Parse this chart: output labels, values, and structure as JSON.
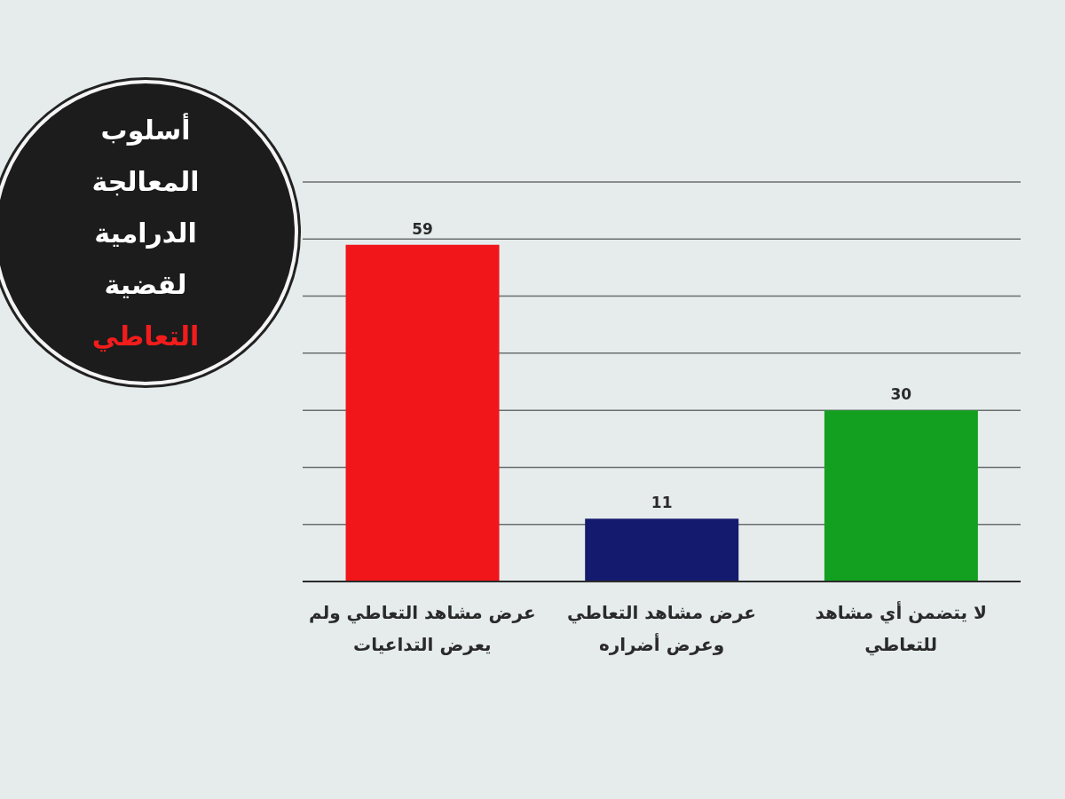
{
  "chart_data": {
    "type": "bar",
    "title": "أسلوب المعالجة الدرامية لقضية التعاطي",
    "categories": [
      "عرض مشاهد التعاطي ولم يعرض التداعيات",
      "عرض مشاهد التعاطي وعرض أضراره",
      "لا يتضمن أي مشاهد للتعاطي"
    ],
    "values": [
      59,
      11,
      30
    ],
    "colors": [
      "#f0161a",
      "#141a6e",
      "#13a020"
    ],
    "ylim": [
      0,
      70
    ],
    "yticks": [
      {
        "value": 0,
        "label": null
      },
      {
        "value": 10,
        "label": null
      },
      {
        "value": 20,
        "label": null
      },
      {
        "value": 30,
        "label": null
      },
      {
        "value": 40,
        "label": null
      },
      {
        "value": 50,
        "label": null
      },
      {
        "value": 60,
        "label": null
      },
      {
        "value": 70,
        "label": null
      }
    ],
    "grid": "y",
    "tick_labels": "x",
    "data_labels": true
  }
}
